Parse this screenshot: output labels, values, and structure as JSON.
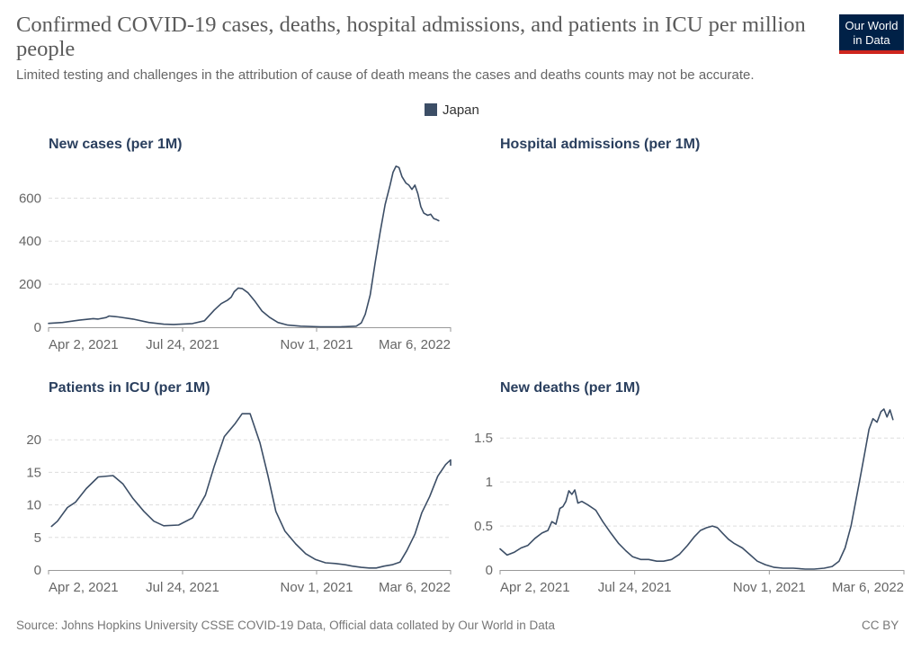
{
  "header": {
    "title": "Confirmed COVID-19 cases, deaths, hospital admissions, and patients in ICU per million people",
    "subtitle": "Limited testing and challenges in the attribution of cause of death means the cases and deaths counts may not be accurate.",
    "logo_line1": "Our World",
    "logo_line2": "in Data"
  },
  "legend": {
    "label": "Japan",
    "color": "#3c4e66"
  },
  "footer": {
    "source": "Source: Johns Hopkins University CSSE COVID-19 Data, Official data collated by Our World in Data",
    "license": "CC BY"
  },
  "chart_data": [
    {
      "type": "line",
      "title": "New cases (per 1M)",
      "x_tick_labels": [
        "Apr 2, 2021",
        "Jul 24, 2021",
        "Nov 1, 2021",
        "Mar 6, 2022"
      ],
      "x_range": [
        "2021-03-01",
        "2022-04-10"
      ],
      "ylim": [
        0,
        760
      ],
      "y_ticks": [
        0,
        200,
        400,
        600
      ],
      "series": [
        {
          "name": "Japan",
          "color": "#3c4e66",
          "points": [
            [
              "2021-03-01",
              18
            ],
            [
              "2021-03-15",
              22
            ],
            [
              "2021-04-01",
              33
            ],
            [
              "2021-04-15",
              40
            ],
            [
              "2021-04-20",
              38
            ],
            [
              "2021-04-28",
              45
            ],
            [
              "2021-05-01",
              52
            ],
            [
              "2021-05-10",
              48
            ],
            [
              "2021-05-25",
              38
            ],
            [
              "2021-06-10",
              22
            ],
            [
              "2021-06-25",
              14
            ],
            [
              "2021-07-05",
              13
            ],
            [
              "2021-07-24",
              17
            ],
            [
              "2021-08-05",
              30
            ],
            [
              "2021-08-15",
              80
            ],
            [
              "2021-08-22",
              110
            ],
            [
              "2021-08-28",
              125
            ],
            [
              "2021-09-01",
              140
            ],
            [
              "2021-09-04",
              165
            ],
            [
              "2021-09-08",
              182
            ],
            [
              "2021-09-12",
              180
            ],
            [
              "2021-09-18",
              160
            ],
            [
              "2021-09-25",
              120
            ],
            [
              "2021-10-02",
              75
            ],
            [
              "2021-10-10",
              45
            ],
            [
              "2021-10-18",
              22
            ],
            [
              "2021-10-28",
              10
            ],
            [
              "2021-11-10",
              5
            ],
            [
              "2021-11-30",
              2
            ],
            [
              "2021-12-20",
              2
            ],
            [
              "2022-01-05",
              5
            ],
            [
              "2022-01-10",
              20
            ],
            [
              "2022-01-14",
              60
            ],
            [
              "2022-01-19",
              150
            ],
            [
              "2022-01-24",
              300
            ],
            [
              "2022-01-29",
              440
            ],
            [
              "2022-02-03",
              570
            ],
            [
              "2022-02-08",
              660
            ],
            [
              "2022-02-11",
              720
            ],
            [
              "2022-02-14",
              748
            ],
            [
              "2022-02-17",
              742
            ],
            [
              "2022-02-20",
              700
            ],
            [
              "2022-02-24",
              670
            ],
            [
              "2022-02-27",
              660
            ],
            [
              "2022-03-02",
              640
            ],
            [
              "2022-03-05",
              660
            ],
            [
              "2022-03-08",
              620
            ],
            [
              "2022-03-11",
              560
            ],
            [
              "2022-03-14",
              530
            ],
            [
              "2022-03-18",
              520
            ],
            [
              "2022-03-21",
              525
            ],
            [
              "2022-03-24",
              505
            ],
            [
              "2022-03-27",
              500
            ],
            [
              "2022-03-29",
              495
            ]
          ]
        }
      ]
    },
    {
      "type": "line",
      "title": "Hospital admissions (per 1M)",
      "series": []
    },
    {
      "type": "line",
      "title": "Patients in ICU (per 1M)",
      "x_tick_labels": [
        "Apr 2, 2021",
        "Jul 24, 2021",
        "Nov 1, 2021",
        "Mar 6, 2022"
      ],
      "x_range": [
        "2021-03-01",
        "2022-04-10"
      ],
      "ylim": [
        0,
        25
      ],
      "y_ticks": [
        0,
        5,
        10,
        15,
        20
      ],
      "series": [
        {
          "name": "Japan",
          "color": "#3c4e66",
          "points": [
            [
              "2021-03-04",
              6.7
            ],
            [
              "2021-03-10",
              7.5
            ],
            [
              "2021-03-20",
              9.6
            ],
            [
              "2021-03-28",
              10.4
            ],
            [
              "2021-04-08",
              12.5
            ],
            [
              "2021-04-20",
              14.3
            ],
            [
              "2021-05-05",
              14.5
            ],
            [
              "2021-05-15",
              13.2
            ],
            [
              "2021-05-25",
              11.0
            ],
            [
              "2021-06-05",
              9.0
            ],
            [
              "2021-06-15",
              7.5
            ],
            [
              "2021-06-25",
              6.8
            ],
            [
              "2021-07-10",
              6.9
            ],
            [
              "2021-07-24",
              8.0
            ],
            [
              "2021-08-06",
              11.5
            ],
            [
              "2021-08-15",
              16.0
            ],
            [
              "2021-08-25",
              20.5
            ],
            [
              "2021-09-05",
              22.5
            ],
            [
              "2021-09-12",
              24.0
            ],
            [
              "2021-09-20",
              24.0
            ],
            [
              "2021-09-30",
              19.5
            ],
            [
              "2021-10-08",
              14.5
            ],
            [
              "2021-10-16",
              9.0
            ],
            [
              "2021-10-25",
              6.0
            ],
            [
              "2021-11-05",
              4.0
            ],
            [
              "2021-11-15",
              2.5
            ],
            [
              "2021-11-25",
              1.6
            ],
            [
              "2021-12-05",
              1.1
            ],
            [
              "2021-12-15",
              1.0
            ],
            [
              "2021-12-25",
              0.8
            ],
            [
              "2022-01-01",
              0.6
            ],
            [
              "2022-01-10",
              0.4
            ],
            [
              "2022-01-18",
              0.3
            ],
            [
              "2022-01-25",
              0.3
            ],
            [
              "2022-02-02",
              0.6
            ],
            [
              "2022-02-10",
              0.8
            ],
            [
              "2022-02-18",
              1.2
            ],
            [
              "2022-02-25",
              3.0
            ],
            [
              "2022-03-05",
              5.5
            ],
            [
              "2022-03-12",
              8.8
            ],
            [
              "2022-03-20",
              11.3
            ],
            [
              "2022-03-28",
              14.4
            ],
            [
              "2022-04-05",
              16.2
            ],
            [
              "2022-04-12",
              16.9
            ],
            [
              "2022-04-20",
              16.1
            ]
          ]
        }
      ]
    },
    {
      "type": "line",
      "title": "New deaths (per 1M)",
      "x_tick_labels": [
        "Apr 2, 2021",
        "Jul 24, 2021",
        "Nov 1, 2021",
        "Mar 6, 2022"
      ],
      "x_range": [
        "2021-03-01",
        "2022-04-10"
      ],
      "ylim": [
        0,
        1.85
      ],
      "y_ticks": [
        0,
        0.5,
        1,
        1.5
      ],
      "series": [
        {
          "name": "Japan",
          "color": "#3c4e66",
          "points": [
            [
              "2021-03-01",
              0.24
            ],
            [
              "2021-03-08",
              0.17
            ],
            [
              "2021-03-15",
              0.2
            ],
            [
              "2021-03-22",
              0.25
            ],
            [
              "2021-03-29",
              0.28
            ],
            [
              "2021-04-05",
              0.36
            ],
            [
              "2021-04-12",
              0.42
            ],
            [
              "2021-04-18",
              0.45
            ],
            [
              "2021-04-22",
              0.55
            ],
            [
              "2021-04-26",
              0.52
            ],
            [
              "2021-04-30",
              0.7
            ],
            [
              "2021-05-03",
              0.72
            ],
            [
              "2021-05-06",
              0.78
            ],
            [
              "2021-05-09",
              0.9
            ],
            [
              "2021-05-12",
              0.86
            ],
            [
              "2021-05-15",
              0.91
            ],
            [
              "2021-05-18",
              0.76
            ],
            [
              "2021-05-22",
              0.78
            ],
            [
              "2021-05-28",
              0.74
            ],
            [
              "2021-06-05",
              0.68
            ],
            [
              "2021-06-12",
              0.55
            ],
            [
              "2021-06-20",
              0.42
            ],
            [
              "2021-06-28",
              0.3
            ],
            [
              "2021-07-05",
              0.22
            ],
            [
              "2021-07-12",
              0.15
            ],
            [
              "2021-07-20",
              0.12
            ],
            [
              "2021-07-28",
              0.12
            ],
            [
              "2021-08-05",
              0.1
            ],
            [
              "2021-08-12",
              0.1
            ],
            [
              "2021-08-20",
              0.12
            ],
            [
              "2021-08-28",
              0.18
            ],
            [
              "2021-09-05",
              0.28
            ],
            [
              "2021-09-12",
              0.38
            ],
            [
              "2021-09-18",
              0.45
            ],
            [
              "2021-09-24",
              0.48
            ],
            [
              "2021-09-30",
              0.5
            ],
            [
              "2021-10-05",
              0.48
            ],
            [
              "2021-10-10",
              0.42
            ],
            [
              "2021-10-16",
              0.35
            ],
            [
              "2021-10-22",
              0.3
            ],
            [
              "2021-10-30",
              0.25
            ],
            [
              "2021-11-06",
              0.18
            ],
            [
              "2021-11-14",
              0.1
            ],
            [
              "2021-11-22",
              0.06
            ],
            [
              "2021-12-01",
              0.03
            ],
            [
              "2021-12-10",
              0.02
            ],
            [
              "2021-12-20",
              0.02
            ],
            [
              "2022-01-01",
              0.01
            ],
            [
              "2022-01-10",
              0.01
            ],
            [
              "2022-01-20",
              0.02
            ],
            [
              "2022-01-28",
              0.04
            ],
            [
              "2022-02-04",
              0.1
            ],
            [
              "2022-02-10",
              0.25
            ],
            [
              "2022-02-16",
              0.5
            ],
            [
              "2022-02-21",
              0.8
            ],
            [
              "2022-02-26",
              1.1
            ],
            [
              "2022-03-02",
              1.35
            ],
            [
              "2022-03-06",
              1.6
            ],
            [
              "2022-03-10",
              1.72
            ],
            [
              "2022-03-14",
              1.68
            ],
            [
              "2022-03-18",
              1.8
            ],
            [
              "2022-03-21",
              1.83
            ],
            [
              "2022-03-24",
              1.74
            ],
            [
              "2022-03-27",
              1.82
            ],
            [
              "2022-03-30",
              1.71
            ]
          ]
        }
      ]
    }
  ]
}
